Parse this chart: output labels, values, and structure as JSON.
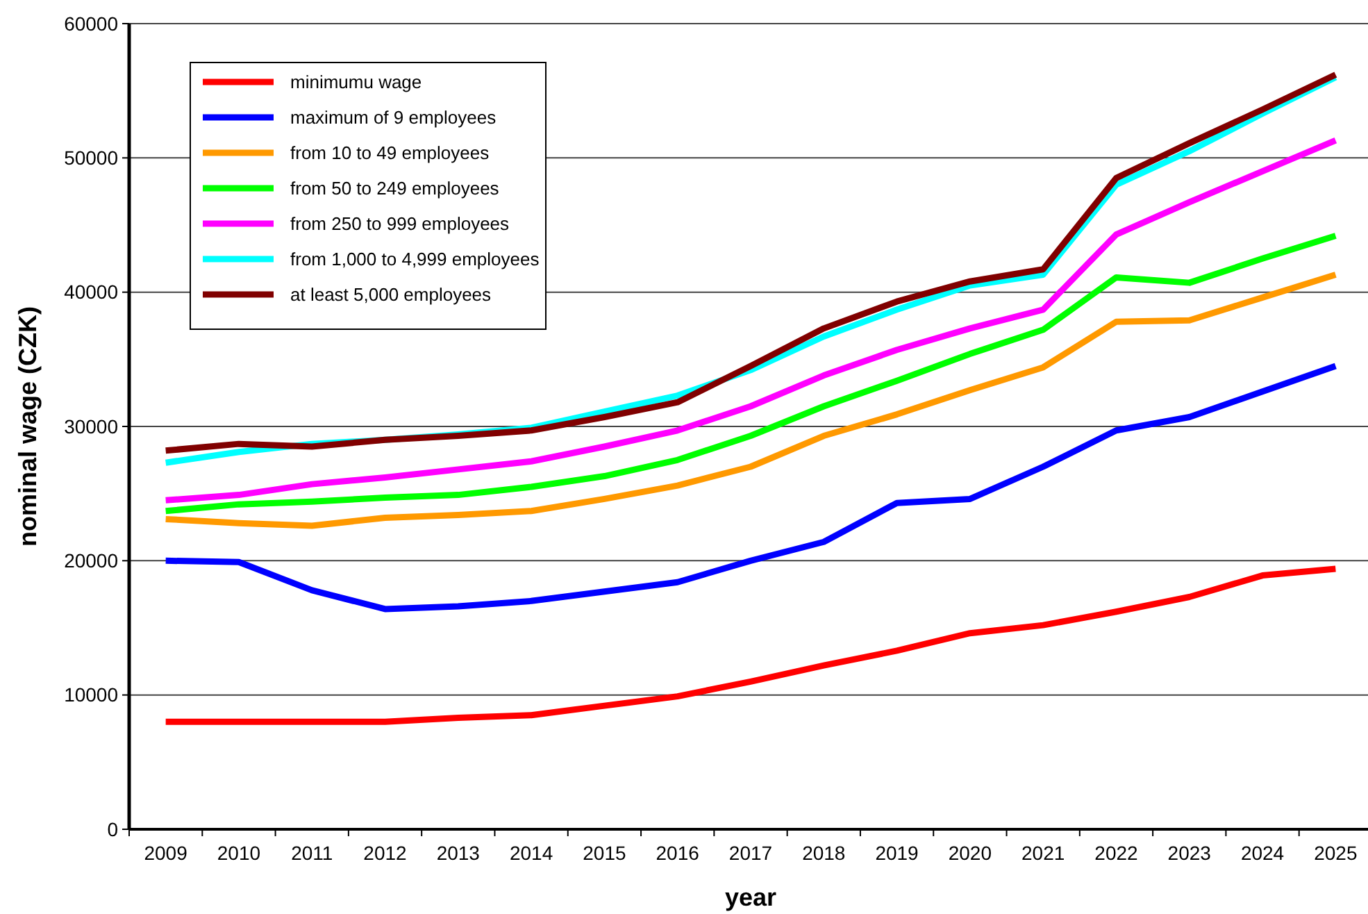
{
  "chart_data": {
    "type": "line",
    "xlabel": "year",
    "ylabel": "nominal wage (CZK)",
    "categories": [
      "2009",
      "2010",
      "2011",
      "2012",
      "2013",
      "2014",
      "2015",
      "2016",
      "2017",
      "2018",
      "2019",
      "2020",
      "2021",
      "2022",
      "2023",
      "2024",
      "2025"
    ],
    "ylim": [
      0,
      60000
    ],
    "yticks": [
      0,
      10000,
      20000,
      30000,
      40000,
      50000,
      60000
    ],
    "grid": "y",
    "legend": "top left",
    "marker": "none",
    "line_style": "solid",
    "series": [
      {
        "name": "minimumu wage",
        "color": "#ff0000",
        "values": [
          8000,
          8000,
          8000,
          8000,
          8300,
          8500,
          9200,
          9900,
          11000,
          12200,
          13300,
          14600,
          15200,
          16200,
          17300,
          18900,
          19400
        ]
      },
      {
        "name": "maximum of 9 employees",
        "color": "#0000ff",
        "values": [
          20000,
          19900,
          17800,
          16400,
          16600,
          17000,
          17700,
          18400,
          20000,
          21400,
          24300,
          24600,
          27000,
          29700,
          30700,
          32600,
          34500
        ]
      },
      {
        "name": "from 10 to 49 employees",
        "color": "#ff9900",
        "values": [
          23100,
          22800,
          22600,
          23200,
          23400,
          23700,
          24600,
          25600,
          27000,
          29300,
          30900,
          32700,
          34400,
          37800,
          37900,
          39600,
          41300
        ]
      },
      {
        "name": "from 50 to 249 employees",
        "color": "#00ff00",
        "values": [
          23700,
          24200,
          24400,
          24700,
          24900,
          25500,
          26300,
          27500,
          29300,
          31500,
          33400,
          35400,
          37200,
          41100,
          40700,
          42500,
          44200
        ]
      },
      {
        "name": "from 250 to 999 employees",
        "color": "#ff00ff",
        "values": [
          24500,
          24900,
          25700,
          26200,
          26800,
          27400,
          28500,
          29700,
          31500,
          33800,
          35700,
          37300,
          38700,
          44300,
          46700,
          49000,
          51300
        ]
      },
      {
        "name": "from 1,000 to 4,999 employees",
        "color": "#00ffff",
        "values": [
          27300,
          28100,
          28700,
          29000,
          29400,
          29900,
          31100,
          32300,
          34200,
          36700,
          38700,
          40500,
          41300,
          48000,
          50500,
          53300,
          56000
        ]
      },
      {
        "name": "at least 5,000 employees",
        "color": "#800000",
        "values": [
          28200,
          28700,
          28500,
          29000,
          29300,
          29700,
          30700,
          31800,
          34500,
          37300,
          39300,
          40800,
          41700,
          48500,
          51100,
          53600,
          56200
        ]
      }
    ]
  }
}
